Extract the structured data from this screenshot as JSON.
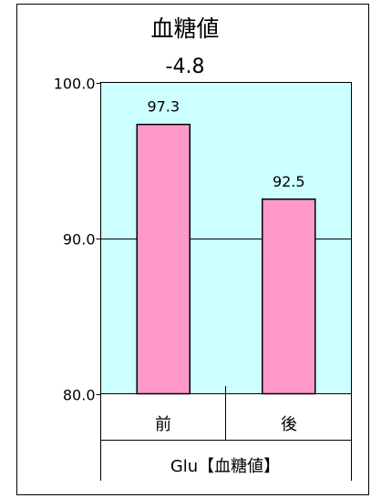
{
  "chart_data": {
    "type": "bar",
    "title": "血糖値",
    "subtitle": "-4.8",
    "categories": [
      "前",
      "後"
    ],
    "values": [
      97.3,
      92.5
    ],
    "data_labels": [
      "97.3",
      "92.5"
    ],
    "xlabel": "Glu【血糖値】",
    "ylim": [
      80,
      100
    ],
    "yticks": [
      80,
      90,
      100
    ],
    "ytick_labels": [
      "80.0",
      "90.0",
      "100.0"
    ],
    "grid": true,
    "legend": "none",
    "colors": {
      "plot_background": "#ccffff",
      "bar_fill": "#ff99cc",
      "bar_stroke": "#000000",
      "gridline": "#000000"
    }
  }
}
